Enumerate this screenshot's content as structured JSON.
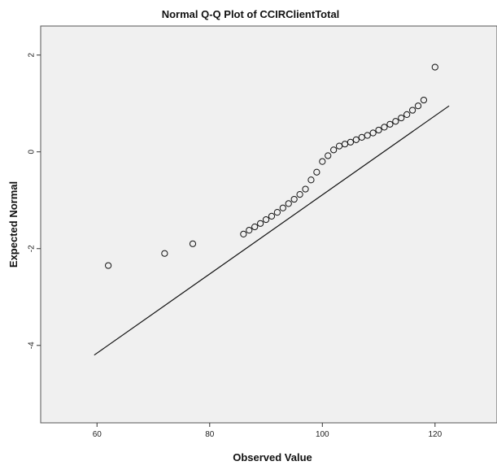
{
  "chart_data": {
    "type": "scatter",
    "title": "Normal Q-Q Plot of CCIRClientTotal",
    "xlabel": "Observed Value",
    "ylabel": "Expected Normal",
    "xlim": [
      50,
      131
    ],
    "ylim": [
      -5.6,
      2.6
    ],
    "x_ticks": [
      60,
      80,
      100,
      120
    ],
    "y_ticks": [
      2,
      0,
      -2,
      -4
    ],
    "grid": false,
    "legend": "none",
    "colors": {
      "plot_background": "#f0f0f0",
      "marker": "#111111",
      "line": "#111111"
    },
    "reference_line": {
      "x": [
        59.5,
        122.5
      ],
      "y": [
        -4.2,
        0.95
      ]
    },
    "points": [
      {
        "x": 62,
        "y": -2.35
      },
      {
        "x": 72,
        "y": -2.1
      },
      {
        "x": 77,
        "y": -1.9
      },
      {
        "x": 86,
        "y": -1.7
      },
      {
        "x": 87,
        "y": -1.62
      },
      {
        "x": 88,
        "y": -1.55
      },
      {
        "x": 89,
        "y": -1.48
      },
      {
        "x": 90,
        "y": -1.4
      },
      {
        "x": 91,
        "y": -1.33
      },
      {
        "x": 92,
        "y": -1.25
      },
      {
        "x": 93,
        "y": -1.16
      },
      {
        "x": 94,
        "y": -1.07
      },
      {
        "x": 95,
        "y": -0.98
      },
      {
        "x": 96,
        "y": -0.88
      },
      {
        "x": 97,
        "y": -0.77
      },
      {
        "x": 98,
        "y": -0.58
      },
      {
        "x": 99,
        "y": -0.42
      },
      {
        "x": 100,
        "y": -0.2
      },
      {
        "x": 101,
        "y": -0.08
      },
      {
        "x": 102,
        "y": 0.04
      },
      {
        "x": 103,
        "y": 0.12
      },
      {
        "x": 104,
        "y": 0.16
      },
      {
        "x": 105,
        "y": 0.2
      },
      {
        "x": 106,
        "y": 0.25
      },
      {
        "x": 107,
        "y": 0.3
      },
      {
        "x": 108,
        "y": 0.34
      },
      {
        "x": 109,
        "y": 0.39
      },
      {
        "x": 110,
        "y": 0.45
      },
      {
        "x": 111,
        "y": 0.51
      },
      {
        "x": 112,
        "y": 0.57
      },
      {
        "x": 113,
        "y": 0.63
      },
      {
        "x": 114,
        "y": 0.7
      },
      {
        "x": 115,
        "y": 0.77
      },
      {
        "x": 116,
        "y": 0.86
      },
      {
        "x": 117,
        "y": 0.95
      },
      {
        "x": 118,
        "y": 1.07
      },
      {
        "x": 120,
        "y": 1.75
      }
    ]
  }
}
